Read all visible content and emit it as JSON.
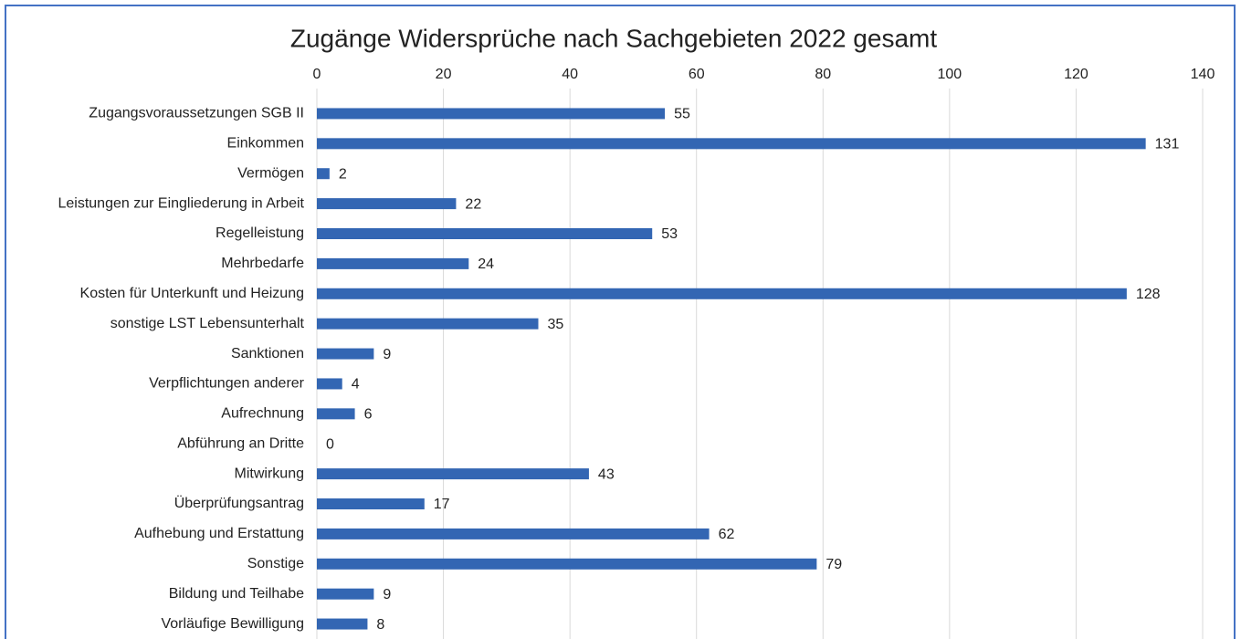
{
  "chart_data": {
    "type": "barh",
    "title": "Zugänge Widersprüche nach Sachgebieten 2022 gesamt",
    "categories": [
      "Zugangsvoraussetzungen SGB II",
      "Einkommen",
      "Vermögen",
      "Leistungen zur Eingliederung in Arbeit",
      "Regelleistung",
      "Mehrbedarfe",
      "Kosten für Unterkunft und Heizung",
      "sonstige LST Lebensunterhalt",
      "Sanktionen",
      "Verpflichtungen anderer",
      "Aufrechnung",
      "Abführung an Dritte",
      "Mitwirkung",
      "Überprüfungsantrag",
      "Aufhebung und Erstattung",
      "Sonstige",
      "Bildung und Teilhabe",
      "Vorläufige Bewilligung"
    ],
    "values": [
      55,
      131,
      2,
      22,
      53,
      24,
      128,
      35,
      9,
      4,
      6,
      0,
      43,
      17,
      62,
      79,
      9,
      8
    ],
    "color": "#3366b3",
    "xlim": [
      0,
      140
    ],
    "xticks": [
      0,
      20,
      40,
      60,
      80,
      100,
      120,
      140
    ],
    "grid": true
  }
}
